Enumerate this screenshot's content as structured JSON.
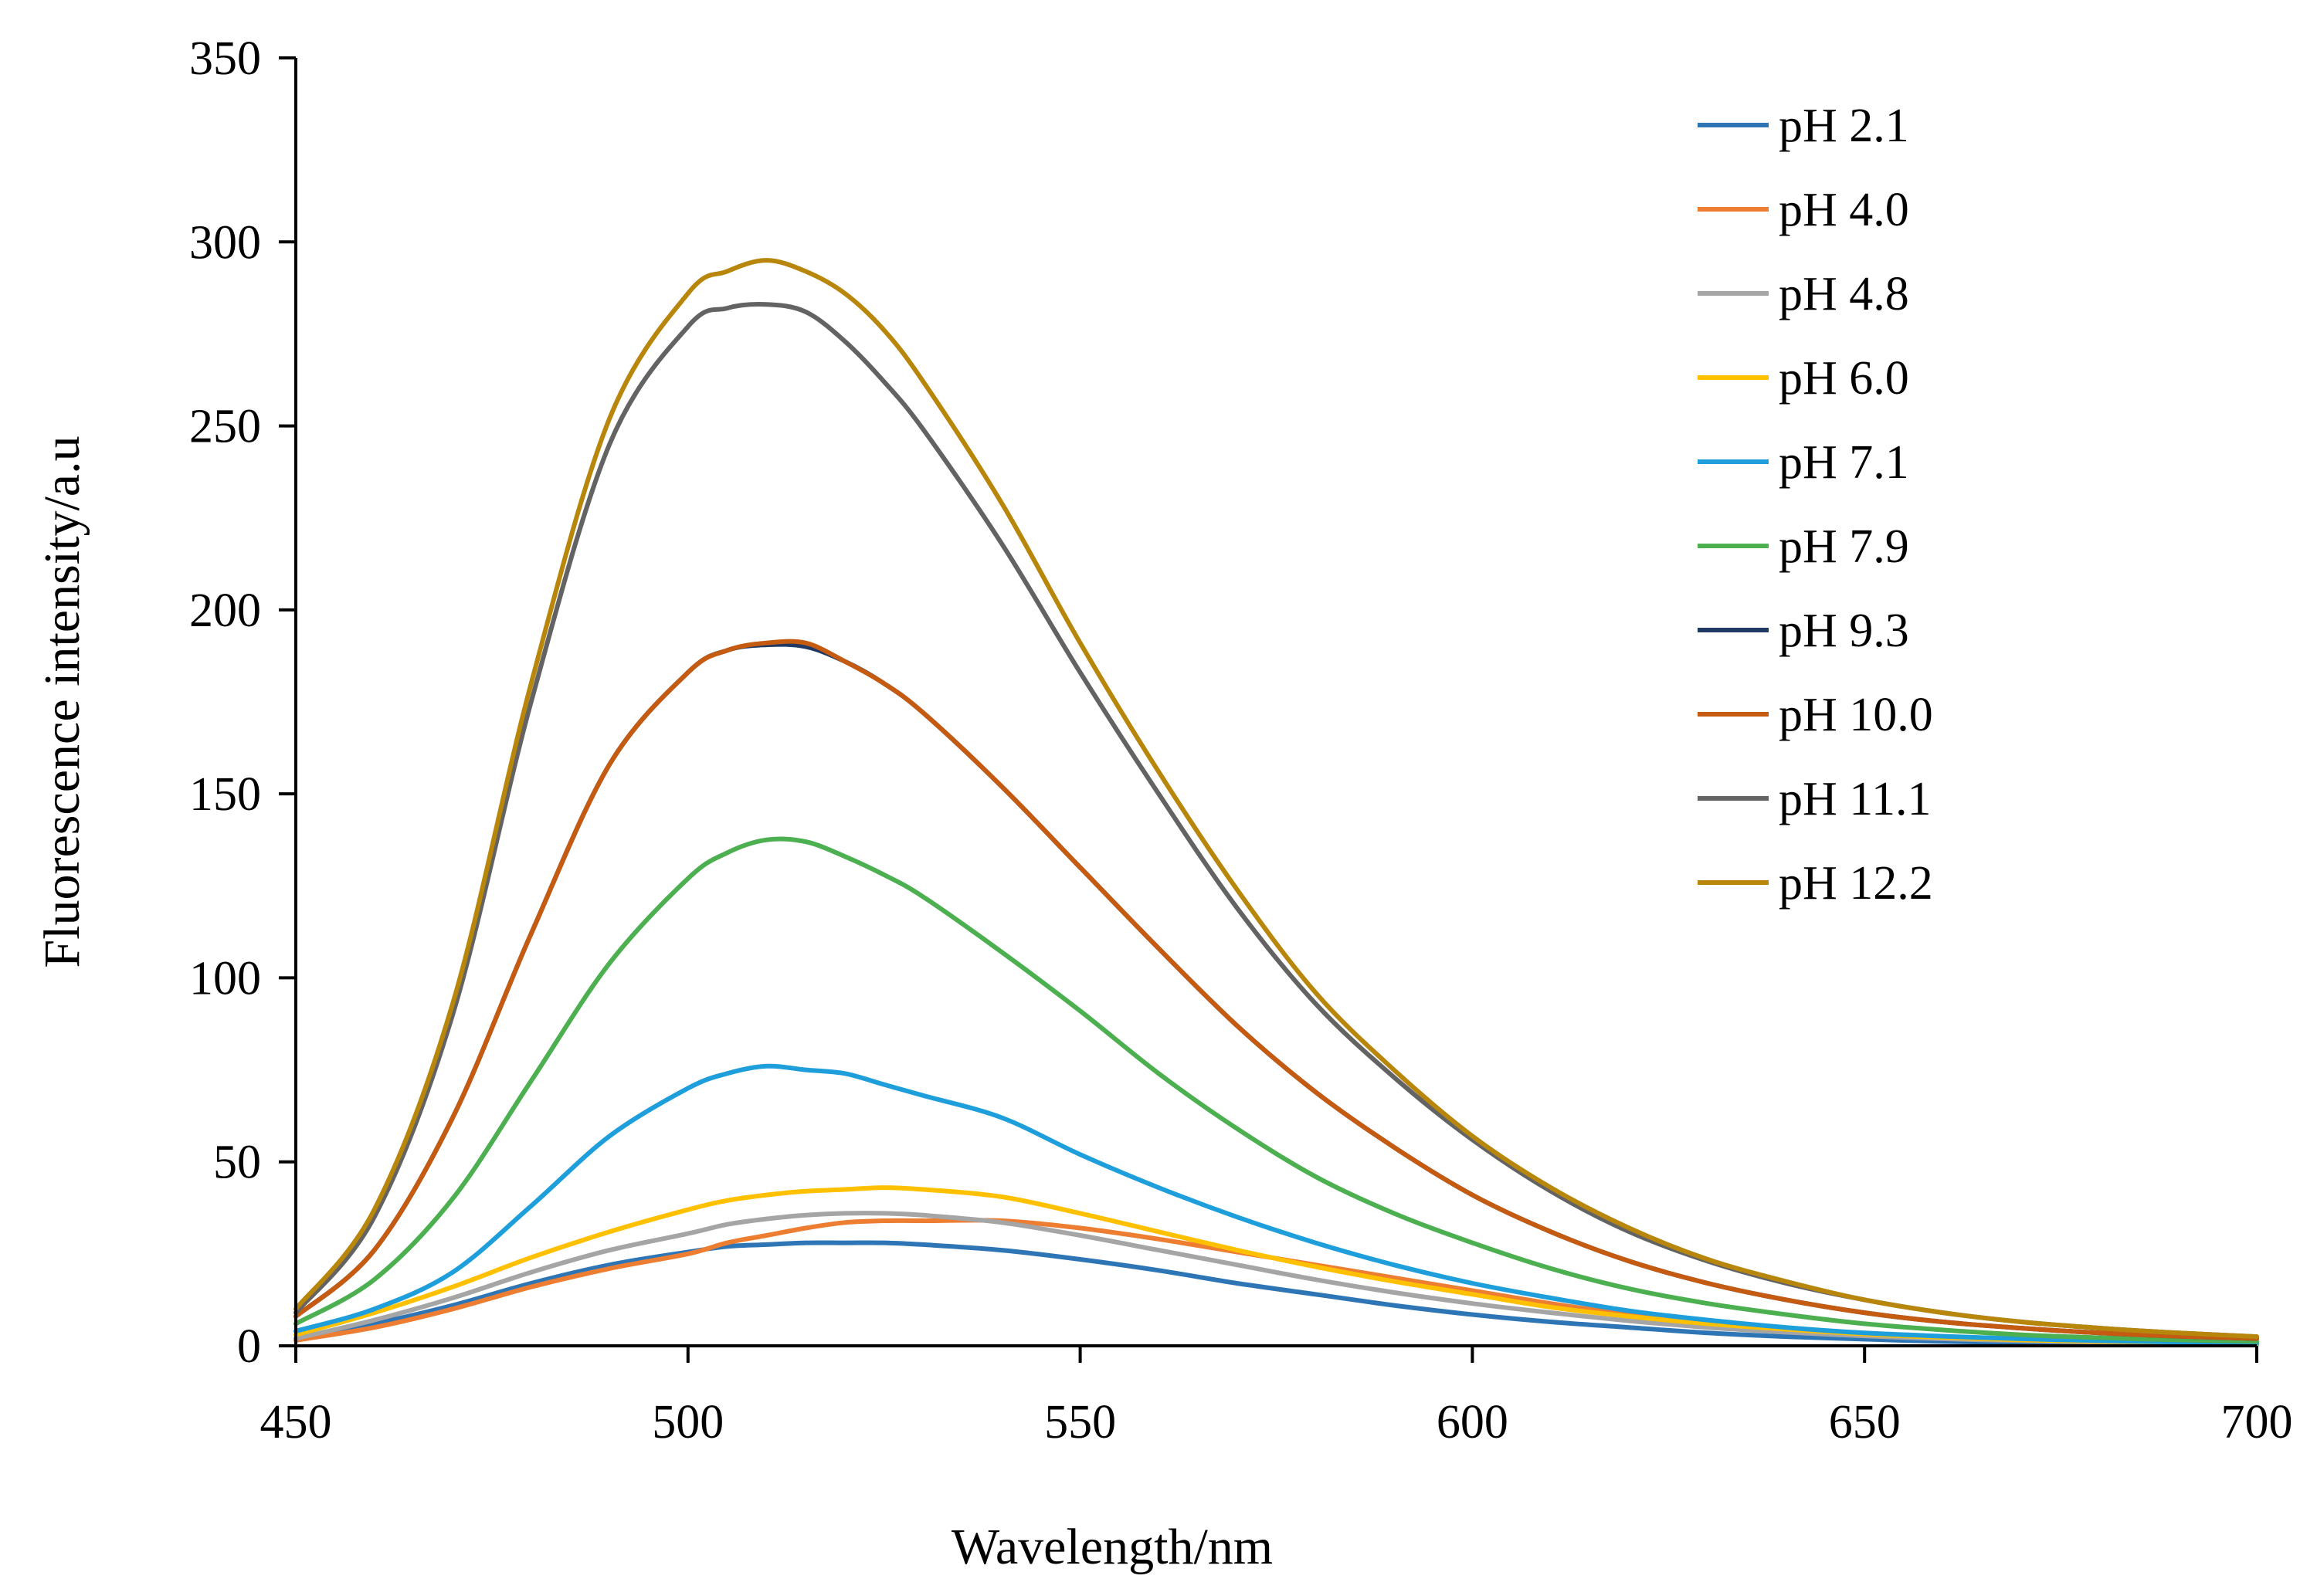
{
  "chart_data": {
    "type": "line",
    "title": "",
    "xlabel": "Wavelength/nm",
    "ylabel": "Fluorescence  intensity/a.u",
    "xlim": [
      450,
      700
    ],
    "ylim": [
      0,
      350
    ],
    "xticks": [
      450,
      500,
      550,
      600,
      650,
      700
    ],
    "yticks": [
      0,
      50,
      100,
      150,
      200,
      250,
      300,
      350
    ],
    "grid": false,
    "legend_position": "top-right",
    "x": [
      450,
      460,
      470,
      480,
      490,
      500,
      505,
      510,
      515,
      520,
      525,
      530,
      540,
      550,
      560,
      570,
      580,
      590,
      600,
      610,
      620,
      630,
      640,
      650,
      660,
      670,
      680,
      690,
      700
    ],
    "series": [
      {
        "name": "pH 2.1",
        "color": "#2E75B6",
        "values": [
          2,
          6,
          11,
          17,
          22,
          25.5,
          27,
          27.5,
          28,
          28,
          28,
          27.5,
          26,
          23.5,
          20.5,
          17,
          14,
          11,
          8.5,
          6.5,
          5,
          3.5,
          2.5,
          1.8,
          1.2,
          0.9,
          0.7,
          0.5,
          0.4
        ]
      },
      {
        "name": "pH 4.0",
        "color": "#ED7D31",
        "values": [
          1.5,
          5,
          10,
          16,
          21,
          25,
          28,
          30,
          32,
          33.5,
          34,
          34,
          34,
          32,
          29,
          25.5,
          22,
          18.5,
          15,
          11.5,
          8.5,
          6.5,
          4.5,
          3.3,
          2.3,
          1.6,
          1.2,
          0.9,
          0.7
        ]
      },
      {
        "name": "pH 4.8",
        "color": "#A5A5A5",
        "values": [
          2,
          7,
          13,
          20,
          26,
          30.5,
          33,
          34.5,
          35.5,
          36,
          36,
          35.5,
          33.5,
          30,
          26,
          22,
          18,
          14.5,
          11.5,
          9,
          6.8,
          5,
          3.7,
          2.7,
          1.9,
          1.4,
          1,
          0.8,
          0.6
        ]
      },
      {
        "name": "pH 6.0",
        "color": "#FFC000",
        "values": [
          3,
          9,
          16,
          24,
          31,
          37,
          39.5,
          41,
          42,
          42.5,
          43,
          42.5,
          40.5,
          36,
          31,
          26,
          21.5,
          17.5,
          14,
          10.5,
          8,
          6,
          4.5,
          3.2,
          2.3,
          1.6,
          1.2,
          0.9,
          0.7
        ]
      },
      {
        "name": "pH 7.1",
        "color": "#1E9FDB",
        "values": [
          4,
          10,
          20,
          38,
          57,
          70,
          74,
          76,
          75,
          74,
          71,
          68,
          62,
          52,
          43,
          35,
          28,
          22,
          17,
          13,
          9.5,
          7,
          5,
          3.5,
          2.6,
          1.9,
          1.4,
          1,
          0.8
        ]
      },
      {
        "name": "pH 7.9",
        "color": "#4CAF50",
        "values": [
          6,
          18,
          40,
          72,
          104,
          127,
          134,
          137.5,
          137,
          133,
          128,
          122,
          107,
          91,
          74,
          59,
          46,
          36,
          28,
          21,
          15.5,
          11.5,
          8.5,
          6,
          4.3,
          3,
          2.2,
          1.6,
          1.2
        ]
      },
      {
        "name": "pH 9.3",
        "color": "#203864",
        "values": [
          8,
          26,
          62,
          112,
          158,
          183,
          189,
          190.5,
          190,
          186,
          180,
          172,
          152,
          130,
          108,
          87,
          69,
          54,
          41,
          31,
          23,
          17,
          12.5,
          9,
          6.5,
          4.8,
          3.5,
          2.6,
          2
        ]
      },
      {
        "name": "pH 10.0",
        "color": "#C55A11",
        "values": [
          8,
          26,
          62,
          112,
          158,
          183,
          189,
          191,
          191,
          186,
          180,
          172,
          152,
          130,
          108,
          87,
          69,
          54,
          41,
          31,
          23,
          17,
          12.5,
          9,
          6.5,
          4.8,
          3.5,
          2.6,
          2
        ]
      },
      {
        "name": "pH 11.1",
        "color": "#636363",
        "values": [
          9,
          35,
          90,
          175,
          245,
          277,
          282,
          283,
          281,
          273,
          262,
          249,
          218,
          183,
          150,
          119,
          93,
          73,
          56,
          42,
          31,
          23,
          17,
          12.5,
          9,
          6.5,
          4.8,
          3.5,
          2.5
        ]
      },
      {
        "name": "pH 12.2",
        "color": "#B8860B",
        "values": [
          10,
          37,
          93,
          180,
          252,
          286,
          292,
          295,
          292,
          286,
          276,
          262,
          229,
          191,
          156,
          124,
          96,
          75,
          57,
          43,
          32,
          23.5,
          17.5,
          12.5,
          9,
          6.5,
          4.8,
          3.5,
          2.5
        ]
      }
    ]
  }
}
